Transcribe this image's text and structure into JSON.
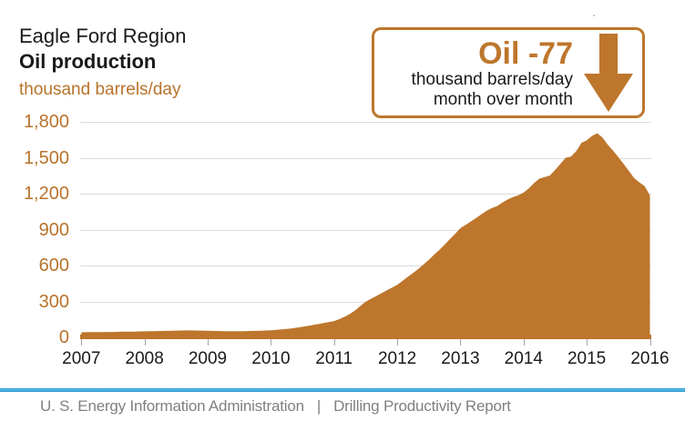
{
  "header": {
    "region_title": "Eagle Ford Region",
    "metric_title": "Oil production",
    "unit_label": "thousand barrels/day"
  },
  "callout": {
    "headline": "Oil -77",
    "line1": "thousand barrels/day",
    "line2": "month over month",
    "arrow_icon": "down-arrow"
  },
  "footer": {
    "source": "U. S. Energy Information Administration",
    "separator": "|",
    "report": "Drilling Productivity Report"
  },
  "colors": {
    "accent_brown": "#b8732b",
    "area_fill": "#bd762c",
    "gridline": "#dcdcdc",
    "tick": "#a6a6a6",
    "black_text": "#1a1a1a",
    "footer_text": "#808080",
    "footer_line_blue": "#2d9ed6"
  },
  "chart_data": {
    "type": "area",
    "title": "Eagle Ford Region Oil production",
    "ylabel": "thousand barrels/day",
    "ylim": [
      0,
      1800
    ],
    "ytick_interval": 300,
    "y_ticklabels": [
      "1,800",
      "1,500",
      "1,200",
      "900",
      "600",
      "300",
      "0"
    ],
    "x_ticklabels": [
      "2007",
      "2008",
      "2009",
      "2010",
      "2011",
      "2012",
      "2013",
      "2014",
      "2015",
      "2016"
    ],
    "x_frequency": "monthly",
    "x_range": "Jan 2007 - Jan 2016",
    "grid": "horizontal",
    "legend": "none",
    "annotation": "Oil -77 thousand barrels/day month over month",
    "series": [
      {
        "name": "Eagle Ford oil production (thousand barrels/day)",
        "values": [
          42,
          43,
          43,
          44,
          44,
          45,
          45,
          46,
          47,
          47,
          48,
          49,
          50,
          51,
          52,
          53,
          54,
          55,
          56,
          57,
          58,
          58,
          57,
          56,
          55,
          54,
          53,
          52,
          52,
          51,
          51,
          52,
          53,
          54,
          55,
          57,
          59,
          62,
          66,
          70,
          75,
          81,
          88,
          95,
          103,
          111,
          119,
          127,
          136,
          152,
          172,
          196,
          225,
          262,
          298,
          322,
          345,
          368,
          392,
          415,
          438,
          472,
          505,
          538,
          570,
          610,
          648,
          690,
          730,
          775,
          820,
          865,
          912,
          940,
          968,
          998,
          1028,
          1058,
          1080,
          1097,
          1127,
          1152,
          1172,
          1187,
          1210,
          1245,
          1290,
          1325,
          1338,
          1352,
          1400,
          1448,
          1500,
          1510,
          1555,
          1625,
          1645,
          1682,
          1705,
          1668,
          1608,
          1560,
          1505,
          1448,
          1390,
          1330,
          1295,
          1262,
          1185
        ]
      }
    ]
  }
}
